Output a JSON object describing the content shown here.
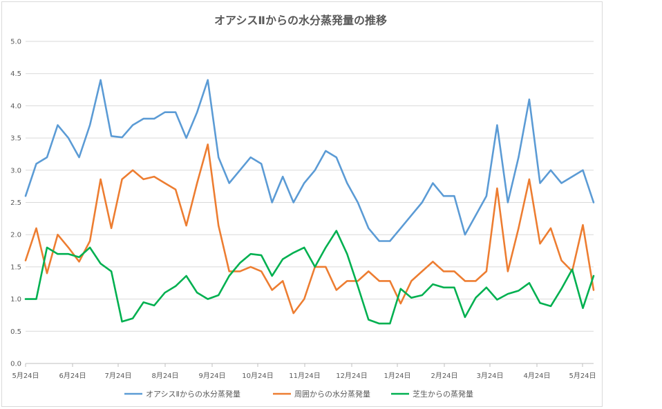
{
  "chart_data": {
    "type": "line",
    "title": "オアシスⅡからの水分蒸発量の推移",
    "xlabel": "",
    "ylabel": "",
    "ylim": [
      0,
      5
    ],
    "yticks": [
      "0.0",
      "0.5",
      "1.0",
      "1.5",
      "2.0",
      "2.5",
      "3.0",
      "3.5",
      "4.0",
      "4.5",
      "5.0"
    ],
    "xticks": [
      "5月24日",
      "6月24日",
      "7月24日",
      "8月24日",
      "9月24日",
      "10月24日",
      "11月24日",
      "12月24日",
      "1月24日",
      "2月24日",
      "3月24日",
      "4月24日",
      "5月24日"
    ],
    "grid": true,
    "legend": "bottom",
    "series": [
      {
        "name": "オアシスⅡからの水分蒸発量",
        "color": "#5b9bd5",
        "values": [
          2.6,
          3.1,
          3.2,
          3.7,
          3.5,
          3.2,
          3.7,
          4.4,
          3.53,
          3.51,
          3.7,
          3.8,
          3.8,
          3.9,
          3.9,
          3.5,
          3.9,
          4.4,
          3.2,
          2.8,
          3.0,
          3.2,
          3.1,
          2.5,
          2.9,
          2.5,
          2.8,
          3.0,
          3.3,
          3.2,
          2.8,
          2.5,
          2.1,
          1.9,
          1.9,
          2.1,
          2.3,
          2.5,
          2.8,
          2.6,
          2.6,
          2.0,
          2.3,
          2.6,
          3.7,
          2.5,
          3.2,
          4.1,
          2.8,
          3.0,
          2.8,
          2.9,
          3.0,
          2.5
        ]
      },
      {
        "name": "周囲からの水分蒸発量",
        "color": "#ed7d31",
        "values": [
          1.6,
          2.1,
          1.4,
          2.0,
          1.8,
          1.58,
          1.9,
          2.86,
          2.1,
          2.86,
          3.0,
          2.86,
          2.9,
          2.8,
          2.7,
          2.14,
          2.8,
          3.4,
          2.14,
          1.43,
          1.43,
          1.5,
          1.43,
          1.14,
          1.28,
          0.78,
          1.0,
          1.5,
          1.5,
          1.14,
          1.28,
          1.28,
          1.43,
          1.28,
          1.28,
          0.93,
          1.28,
          1.43,
          1.58,
          1.43,
          1.43,
          1.28,
          1.28,
          1.43,
          2.72,
          1.43,
          2.1,
          2.86,
          1.86,
          2.1,
          1.6,
          1.43,
          2.15,
          1.14
        ]
      },
      {
        "name": "芝生からの蒸発量",
        "color": "#00b050",
        "values": [
          1.0,
          1.0,
          1.8,
          1.7,
          1.7,
          1.65,
          1.8,
          1.55,
          1.43,
          0.65,
          0.7,
          0.95,
          0.9,
          1.1,
          1.2,
          1.36,
          1.1,
          1.0,
          1.06,
          1.36,
          1.56,
          1.7,
          1.68,
          1.36,
          1.62,
          1.72,
          1.8,
          1.5,
          1.8,
          2.06,
          1.7,
          1.2,
          0.68,
          0.62,
          0.62,
          1.16,
          1.02,
          1.06,
          1.23,
          1.18,
          1.18,
          0.72,
          1.02,
          1.18,
          0.99,
          1.08,
          1.13,
          1.25,
          0.94,
          0.89,
          1.16,
          1.46,
          0.86,
          1.36
        ]
      }
    ]
  }
}
